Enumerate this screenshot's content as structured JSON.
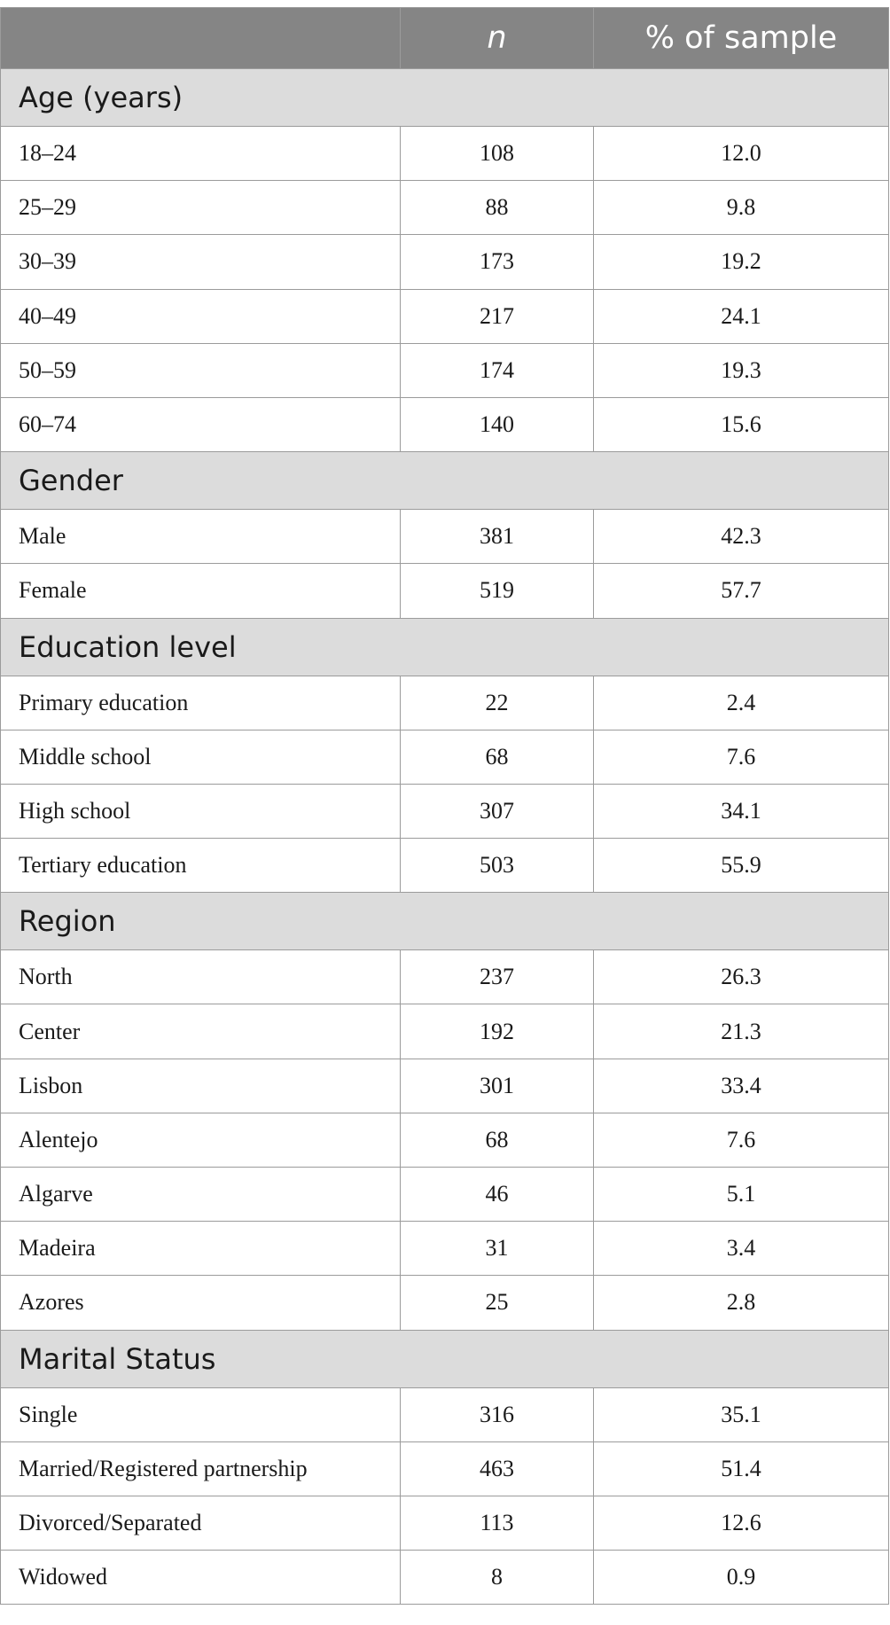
{
  "header": {
    "col_label": "",
    "col_n": "n",
    "col_pct": "% of sample"
  },
  "sections": [
    {
      "title": "Age (years)",
      "rows": [
        {
          "label": "18–24",
          "n": "108",
          "pct": "12.0"
        },
        {
          "label": "25–29",
          "n": "88",
          "pct": "9.8"
        },
        {
          "label": "30–39",
          "n": "173",
          "pct": "19.2"
        },
        {
          "label": "40–49",
          "n": "217",
          "pct": "24.1"
        },
        {
          "label": "50–59",
          "n": "174",
          "pct": "19.3"
        },
        {
          "label": "60–74",
          "n": "140",
          "pct": "15.6"
        }
      ]
    },
    {
      "title": "Gender",
      "rows": [
        {
          "label": "Male",
          "n": "381",
          "pct": "42.3"
        },
        {
          "label": "Female",
          "n": "519",
          "pct": "57.7"
        }
      ]
    },
    {
      "title": "Education level",
      "rows": [
        {
          "label": "Primary education",
          "n": "22",
          "pct": "2.4"
        },
        {
          "label": "Middle school",
          "n": "68",
          "pct": "7.6"
        },
        {
          "label": "High school",
          "n": "307",
          "pct": "34.1"
        },
        {
          "label": "Tertiary education",
          "n": "503",
          "pct": "55.9"
        }
      ]
    },
    {
      "title": "Region",
      "rows": [
        {
          "label": "North",
          "n": "237",
          "pct": "26.3"
        },
        {
          "label": "Center",
          "n": "192",
          "pct": "21.3"
        },
        {
          "label": "Lisbon",
          "n": "301",
          "pct": "33.4"
        },
        {
          "label": "Alentejo",
          "n": "68",
          "pct": "7.6"
        },
        {
          "label": "Algarve",
          "n": "46",
          "pct": "5.1"
        },
        {
          "label": "Madeira",
          "n": "31",
          "pct": "3.4"
        },
        {
          "label": "Azores",
          "n": "25",
          "pct": "2.8"
        }
      ]
    },
    {
      "title": "Marital Status",
      "rows": [
        {
          "label": "Single",
          "n": "316",
          "pct": "35.1"
        },
        {
          "label": "Married/Registered partnership",
          "n": "463",
          "pct": "51.4"
        },
        {
          "label": "Divorced/Separated",
          "n": "113",
          "pct": "12.6"
        },
        {
          "label": "Widowed",
          "n": "8",
          "pct": "0.9"
        }
      ]
    }
  ],
  "colors": {
    "header_bg": "#858585",
    "section_bg": "#dcdcdc",
    "border": "#9b9b9b"
  }
}
